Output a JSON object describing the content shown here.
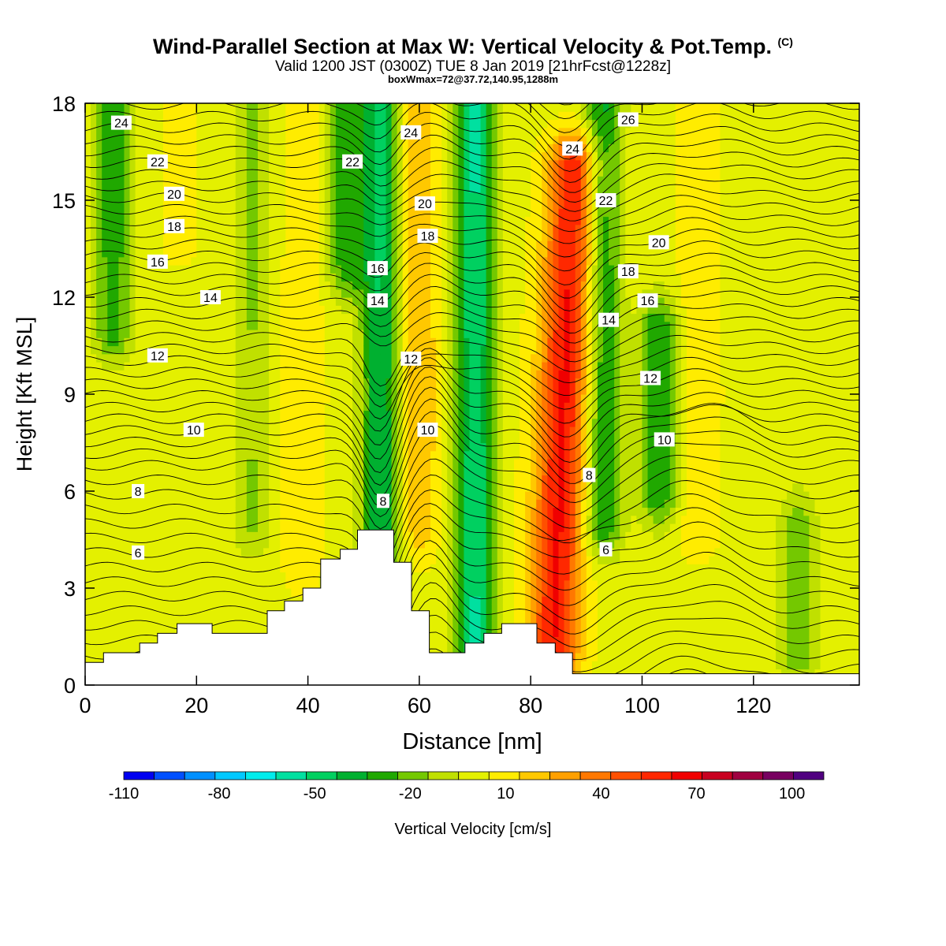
{
  "header": {
    "title": "Wind-Parallel Section at Max W: Vertical Velocity & Pot.Temp.",
    "title_mark": "(C)",
    "subtitle": "Valid 1200 JST (0300Z) TUE 8 Jan 2019 [21hrFcst@1228z]",
    "subtitle2": "boxWmax=72@37.72,140.95,1288m"
  },
  "chart_data": {
    "type": "heatmap",
    "xlabel": "Distance [nm]",
    "ylabel": "Height [Kft MSL]",
    "xlim": [
      0,
      139
    ],
    "ylim": [
      0,
      18
    ],
    "x_ticks": [
      0,
      20,
      40,
      60,
      80,
      100,
      120
    ],
    "y_ticks": [
      0,
      3,
      6,
      9,
      12,
      15,
      18
    ],
    "colorbar": {
      "label": "Vertical Velocity [cm/s]",
      "ticks": [
        -110,
        -80,
        -50,
        -20,
        10,
        40,
        70,
        100
      ],
      "levels": [
        -110,
        -100,
        -90,
        -80,
        -70,
        -60,
        -50,
        -40,
        -30,
        -20,
        -10,
        0,
        10,
        20,
        30,
        40,
        50,
        60,
        70,
        80,
        90,
        100,
        110
      ],
      "colors": [
        "#0000f0",
        "#0050ff",
        "#0090ff",
        "#00c8ff",
        "#00ecec",
        "#00e0a0",
        "#00d060",
        "#00b030",
        "#20a800",
        "#74c800",
        "#c0e000",
        "#e4f000",
        "#ffec00",
        "#ffc800",
        "#ffa000",
        "#ff7800",
        "#ff5000",
        "#ff2800",
        "#f00000",
        "#c80020",
        "#a00040",
        "#780060",
        "#500080"
      ]
    },
    "vertical_velocity_features": [
      {
        "x": 5,
        "z_range": [
          11,
          18
        ],
        "peak_cms": -25
      },
      {
        "x": 17,
        "z_range": [
          14,
          18
        ],
        "peak_cms": 15
      },
      {
        "x": 30,
        "z_range": [
          5,
          18
        ],
        "peak_cms": -10
      },
      {
        "x": 39,
        "z_range": [
          4,
          18
        ],
        "peak_cms": 20
      },
      {
        "x": 47,
        "z_range": [
          13,
          18
        ],
        "peak_cms": -25
      },
      {
        "x": 53,
        "z_range": [
          4,
          18
        ],
        "peak_cms": -40
      },
      {
        "x": 60,
        "z_range": [
          5,
          18
        ],
        "peak_cms": 30
      },
      {
        "x": 70,
        "z_range": [
          1,
          18
        ],
        "peak_cms": -50
      },
      {
        "x": 85,
        "z_range": [
          1,
          16
        ],
        "peak_cms": 72
      },
      {
        "x": 93,
        "z_range": [
          5,
          18
        ],
        "peak_cms": -30
      },
      {
        "x": 103,
        "z_range": [
          6,
          11
        ],
        "peak_cms": -30
      },
      {
        "x": 110,
        "z_range": [
          5,
          18
        ],
        "peak_cms": 20
      },
      {
        "x": 128,
        "z_range": [
          1,
          5
        ],
        "peak_cms": -15
      }
    ],
    "theta_contours_degC": [
      6,
      8,
      10,
      12,
      14,
      16,
      18,
      20,
      22,
      24,
      26
    ],
    "theta_labels": [
      {
        "text": "24",
        "x": 6.5,
        "z": 17.4
      },
      {
        "text": "22",
        "x": 13,
        "z": 16.2
      },
      {
        "text": "20",
        "x": 16,
        "z": 15.2
      },
      {
        "text": "18",
        "x": 16,
        "z": 14.2
      },
      {
        "text": "16",
        "x": 13,
        "z": 13.1
      },
      {
        "text": "14",
        "x": 22.5,
        "z": 12.0
      },
      {
        "text": "12",
        "x": 13,
        "z": 10.2
      },
      {
        "text": "10",
        "x": 19.5,
        "z": 7.9
      },
      {
        "text": "8",
        "x": 9.5,
        "z": 6.0
      },
      {
        "text": "6",
        "x": 9.5,
        "z": 4.1
      },
      {
        "text": "22",
        "x": 48,
        "z": 16.2
      },
      {
        "text": "24",
        "x": 58.5,
        "z": 17.1
      },
      {
        "text": "20",
        "x": 61,
        "z": 14.9
      },
      {
        "text": "18",
        "x": 61.5,
        "z": 13.9
      },
      {
        "text": "16",
        "x": 52.5,
        "z": 12.9
      },
      {
        "text": "14",
        "x": 52.5,
        "z": 11.9
      },
      {
        "text": "12",
        "x": 58.5,
        "z": 10.1
      },
      {
        "text": "10",
        "x": 61.5,
        "z": 7.9
      },
      {
        "text": "8",
        "x": 53.5,
        "z": 5.7
      },
      {
        "text": "26",
        "x": 97.5,
        "z": 17.5
      },
      {
        "text": "24",
        "x": 87.5,
        "z": 16.6
      },
      {
        "text": "22",
        "x": 93.5,
        "z": 15.0
      },
      {
        "text": "20",
        "x": 103,
        "z": 13.7
      },
      {
        "text": "18",
        "x": 97.5,
        "z": 12.8
      },
      {
        "text": "16",
        "x": 101,
        "z": 11.9
      },
      {
        "text": "14",
        "x": 94,
        "z": 11.3
      },
      {
        "text": "12",
        "x": 101.5,
        "z": 9.5
      },
      {
        "text": "10",
        "x": 104,
        "z": 7.6
      },
      {
        "text": "8",
        "x": 90.5,
        "z": 6.5
      },
      {
        "text": "6",
        "x": 93.5,
        "z": 4.2
      }
    ],
    "terrain": {
      "x": [
        0,
        3.3,
        3.3,
        9.8,
        9.8,
        13,
        13,
        16.5,
        16.5,
        22.8,
        22.8,
        32.7,
        32.7,
        35.8,
        35.8,
        39.1,
        39.1,
        42.3,
        42.3,
        45.8,
        45.8,
        48.9,
        48.9,
        55.4,
        55.4,
        58.6,
        58.6,
        61.8,
        61.8,
        68.2,
        68.2,
        71.6,
        71.6,
        74.8,
        74.8,
        81.1,
        81.1,
        84.4,
        84.4,
        87.5,
        87.5
      ],
      "z": [
        0.7,
        0.7,
        1.0,
        1.0,
        1.3,
        1.3,
        1.6,
        1.6,
        1.9,
        1.9,
        1.6,
        1.6,
        2.3,
        2.3,
        2.6,
        2.6,
        3.0,
        3.0,
        3.9,
        3.9,
        4.2,
        4.2,
        4.8,
        4.8,
        3.8,
        3.8,
        2.3,
        2.3,
        1.0,
        1.0,
        1.3,
        1.3,
        1.6,
        1.6,
        1.9,
        1.9,
        1.3,
        1.3,
        1.0,
        1.0,
        0.35
      ]
    }
  }
}
